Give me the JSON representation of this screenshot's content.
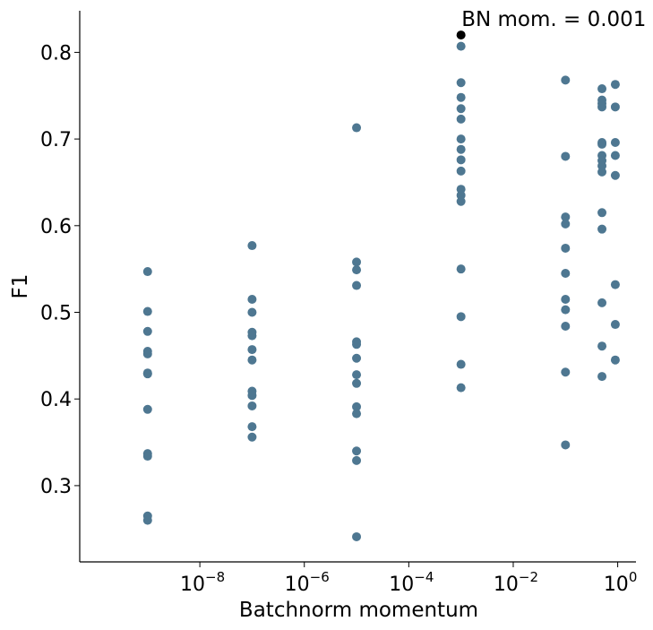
{
  "chart_data": {
    "type": "scatter",
    "xlabel": "Batchnorm momentum",
    "ylabel": "F1",
    "xscale": "log",
    "xlim_exp": [
      -10.3,
      0.35
    ],
    "ylim": [
      0.212,
      0.848
    ],
    "grid": false,
    "x_ticks": [
      {
        "value": -8,
        "base": "10",
        "exp": "−8"
      },
      {
        "value": -6,
        "base": "10",
        "exp": "−6"
      },
      {
        "value": -4,
        "base": "10",
        "exp": "−4"
      },
      {
        "value": -2,
        "base": "10",
        "exp": "−2"
      },
      {
        "value": 0,
        "base": "10",
        "exp": "0"
      }
    ],
    "y_ticks": [
      "0.3",
      "0.4",
      "0.5",
      "0.6",
      "0.7",
      "0.8"
    ],
    "point_color": "#4e7791",
    "highlight_color": "#000000",
    "highlight": {
      "x": 0.001,
      "y": 0.82,
      "label": "BN mom. = 0.001"
    },
    "points": [
      {
        "x": 1e-09,
        "y": 0.547
      },
      {
        "x": 1e-09,
        "y": 0.501
      },
      {
        "x": 1e-09,
        "y": 0.478
      },
      {
        "x": 1e-09,
        "y": 0.455
      },
      {
        "x": 1e-09,
        "y": 0.452
      },
      {
        "x": 1e-09,
        "y": 0.43
      },
      {
        "x": 1e-09,
        "y": 0.429
      },
      {
        "x": 1e-09,
        "y": 0.388
      },
      {
        "x": 1e-09,
        "y": 0.337
      },
      {
        "x": 1e-09,
        "y": 0.334
      },
      {
        "x": 1e-09,
        "y": 0.265
      },
      {
        "x": 1e-09,
        "y": 0.26
      },
      {
        "x": 1e-07,
        "y": 0.577
      },
      {
        "x": 1e-07,
        "y": 0.515
      },
      {
        "x": 1e-07,
        "y": 0.5
      },
      {
        "x": 1e-07,
        "y": 0.477
      },
      {
        "x": 1e-07,
        "y": 0.473
      },
      {
        "x": 1e-07,
        "y": 0.457
      },
      {
        "x": 1e-07,
        "y": 0.445
      },
      {
        "x": 1e-07,
        "y": 0.409
      },
      {
        "x": 1e-07,
        "y": 0.404
      },
      {
        "x": 1e-07,
        "y": 0.392
      },
      {
        "x": 1e-07,
        "y": 0.368
      },
      {
        "x": 1e-07,
        "y": 0.356
      },
      {
        "x": 1e-05,
        "y": 0.713
      },
      {
        "x": 1e-05,
        "y": 0.558
      },
      {
        "x": 1e-05,
        "y": 0.549
      },
      {
        "x": 1e-05,
        "y": 0.531
      },
      {
        "x": 1e-05,
        "y": 0.466
      },
      {
        "x": 1e-05,
        "y": 0.463
      },
      {
        "x": 1e-05,
        "y": 0.447
      },
      {
        "x": 1e-05,
        "y": 0.428
      },
      {
        "x": 1e-05,
        "y": 0.418
      },
      {
        "x": 1e-05,
        "y": 0.391
      },
      {
        "x": 1e-05,
        "y": 0.383
      },
      {
        "x": 1e-05,
        "y": 0.34
      },
      {
        "x": 1e-05,
        "y": 0.329
      },
      {
        "x": 1e-05,
        "y": 0.241
      },
      {
        "x": 0.001,
        "y": 0.807
      },
      {
        "x": 0.001,
        "y": 0.765
      },
      {
        "x": 0.001,
        "y": 0.748
      },
      {
        "x": 0.001,
        "y": 0.735
      },
      {
        "x": 0.001,
        "y": 0.723
      },
      {
        "x": 0.001,
        "y": 0.7
      },
      {
        "x": 0.001,
        "y": 0.688
      },
      {
        "x": 0.001,
        "y": 0.676
      },
      {
        "x": 0.001,
        "y": 0.663
      },
      {
        "x": 0.001,
        "y": 0.642
      },
      {
        "x": 0.001,
        "y": 0.635
      },
      {
        "x": 0.001,
        "y": 0.628
      },
      {
        "x": 0.001,
        "y": 0.55
      },
      {
        "x": 0.001,
        "y": 0.495
      },
      {
        "x": 0.001,
        "y": 0.44
      },
      {
        "x": 0.001,
        "y": 0.413
      },
      {
        "x": 0.1,
        "y": 0.768
      },
      {
        "x": 0.1,
        "y": 0.68
      },
      {
        "x": 0.1,
        "y": 0.61
      },
      {
        "x": 0.1,
        "y": 0.602
      },
      {
        "x": 0.1,
        "y": 0.574
      },
      {
        "x": 0.1,
        "y": 0.545
      },
      {
        "x": 0.1,
        "y": 0.515
      },
      {
        "x": 0.1,
        "y": 0.503
      },
      {
        "x": 0.1,
        "y": 0.484
      },
      {
        "x": 0.1,
        "y": 0.431
      },
      {
        "x": 0.1,
        "y": 0.347
      },
      {
        "x": 0.5,
        "y": 0.758
      },
      {
        "x": 0.5,
        "y": 0.745
      },
      {
        "x": 0.5,
        "y": 0.741
      },
      {
        "x": 0.5,
        "y": 0.737
      },
      {
        "x": 0.5,
        "y": 0.696
      },
      {
        "x": 0.5,
        "y": 0.694
      },
      {
        "x": 0.5,
        "y": 0.681
      },
      {
        "x": 0.5,
        "y": 0.675
      },
      {
        "x": 0.5,
        "y": 0.669
      },
      {
        "x": 0.5,
        "y": 0.662
      },
      {
        "x": 0.5,
        "y": 0.615
      },
      {
        "x": 0.5,
        "y": 0.596
      },
      {
        "x": 0.5,
        "y": 0.511
      },
      {
        "x": 0.5,
        "y": 0.461
      },
      {
        "x": 0.5,
        "y": 0.426
      },
      {
        "x": 0.9,
        "y": 0.763
      },
      {
        "x": 0.9,
        "y": 0.737
      },
      {
        "x": 0.9,
        "y": 0.696
      },
      {
        "x": 0.9,
        "y": 0.681
      },
      {
        "x": 0.9,
        "y": 0.658
      },
      {
        "x": 0.9,
        "y": 0.532
      },
      {
        "x": 0.9,
        "y": 0.486
      },
      {
        "x": 0.9,
        "y": 0.445
      }
    ]
  }
}
